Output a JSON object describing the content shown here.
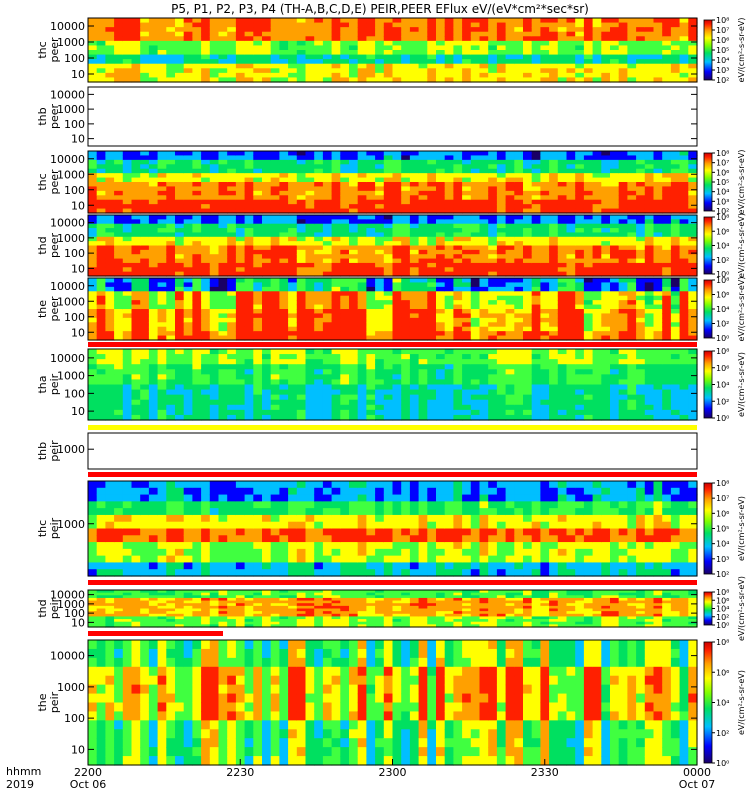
{
  "chart_data": {
    "type": "heatmap",
    "title": "P5, P1, P2, P3, P4 (TH-A,B,C,D,E) PEIR,PEER EFlux eV/(eV*cm²*sec*sr)",
    "x_axis": {
      "row_labels": [
        "hhmm",
        "2019"
      ],
      "ticks": [
        {
          "time": "2200",
          "date": "Oct 06"
        },
        {
          "time": "2230",
          "date": ""
        },
        {
          "time": "2300",
          "date": ""
        },
        {
          "time": "2330",
          "date": ""
        },
        {
          "time": "0000",
          "date": "Oct 07"
        }
      ],
      "range": [
        "2019-10-06 22:00",
        "2019-10-07 00:00"
      ]
    },
    "colorbar_label_sample": "eV/(cm²-s-sr-eV)",
    "panels": [
      {
        "probe": "thc",
        "species": "peer",
        "yticks": [
          "10",
          "100",
          "1000",
          "10000"
        ],
        "log_y": true,
        "has_data": true,
        "pattern": "peer-top",
        "colorbar": {
          "ticks": [
            "10²",
            "10³",
            "10⁴",
            "10⁵",
            "10⁶",
            "10⁷",
            "10⁸"
          ]
        }
      },
      {
        "probe": "thb",
        "species": "peer",
        "yticks": [
          "10",
          "100",
          "1000",
          "10000"
        ],
        "log_y": true,
        "has_data": false,
        "pattern": "none",
        "colorbar": null
      },
      {
        "probe": "thc",
        "species": "peer",
        "yticks": [
          "10",
          "100",
          "1000",
          "10000"
        ],
        "log_y": true,
        "has_data": true,
        "pattern": "peer-dense",
        "colorbar": {
          "ticks": [
            "10²",
            "10³",
            "10⁴",
            "10⁵",
            "10⁶",
            "10⁷",
            "10⁸"
          ]
        }
      },
      {
        "probe": "thd",
        "species": "peer",
        "yticks": [
          "10",
          "100",
          "1000",
          "10000"
        ],
        "log_y": true,
        "has_data": true,
        "pattern": "peer-dense",
        "colorbar": {
          "ticks": [
            "10⁰",
            "10²",
            "10⁴",
            "10⁶",
            "10⁸"
          ]
        }
      },
      {
        "probe": "the",
        "species": "peer",
        "yticks": [
          "10",
          "100",
          "1000",
          "10000"
        ],
        "log_y": true,
        "has_data": true,
        "pattern": "peer-patchy",
        "colorbar": {
          "ticks": [
            "10⁰",
            "10²",
            "10⁴",
            "10⁶",
            "10⁸"
          ]
        }
      },
      {
        "probe": "tha",
        "species": "peir",
        "yticks": [
          "10",
          "100",
          "1000",
          "10000"
        ],
        "log_y": true,
        "has_data": true,
        "pattern": "peir-green",
        "colorbar": {
          "ticks": [
            "10⁰",
            "10²",
            "10⁴",
            "10⁶",
            "10⁸"
          ]
        }
      },
      {
        "probe": "thb",
        "species": "peir",
        "yticks": [
          "1000"
        ],
        "log_y": true,
        "has_data": false,
        "pattern": "none",
        "colorbar": null
      },
      {
        "probe": "thc",
        "species": "peir",
        "yticks": [
          "1000"
        ],
        "log_y": true,
        "has_data": true,
        "pattern": "peir-band",
        "colorbar": {
          "ticks": [
            "10²",
            "10³",
            "10⁴",
            "10⁵",
            "10⁶",
            "10⁷",
            "10⁸"
          ]
        }
      },
      {
        "probe": "thd",
        "species": "peir",
        "yticks": [
          "10",
          "100",
          "1000",
          "10000"
        ],
        "log_y": true,
        "has_data": true,
        "pattern": "peir-orange",
        "colorbar": {
          "ticks": [
            "10⁰",
            "10²",
            "10⁴",
            "10⁶",
            "10⁸"
          ]
        }
      },
      {
        "probe": "the",
        "species": "peir",
        "yticks": [
          "10",
          "100",
          "1000",
          "10000"
        ],
        "log_y": true,
        "has_data": true,
        "pattern": "peir-patchy",
        "colorbar": {
          "ticks": [
            "10⁰",
            "10²",
            "10⁴",
            "10⁶",
            "10⁸"
          ]
        }
      }
    ]
  },
  "colors": {
    "colormap": [
      "#1a0066",
      "#0000ff",
      "#00bfff",
      "#00e060",
      "#40ff40",
      "#ffff00",
      "#ffa000",
      "#ff2000",
      "#cc0000"
    ],
    "flag_red": "#ff0000",
    "flag_yellow": "#ffff00"
  }
}
